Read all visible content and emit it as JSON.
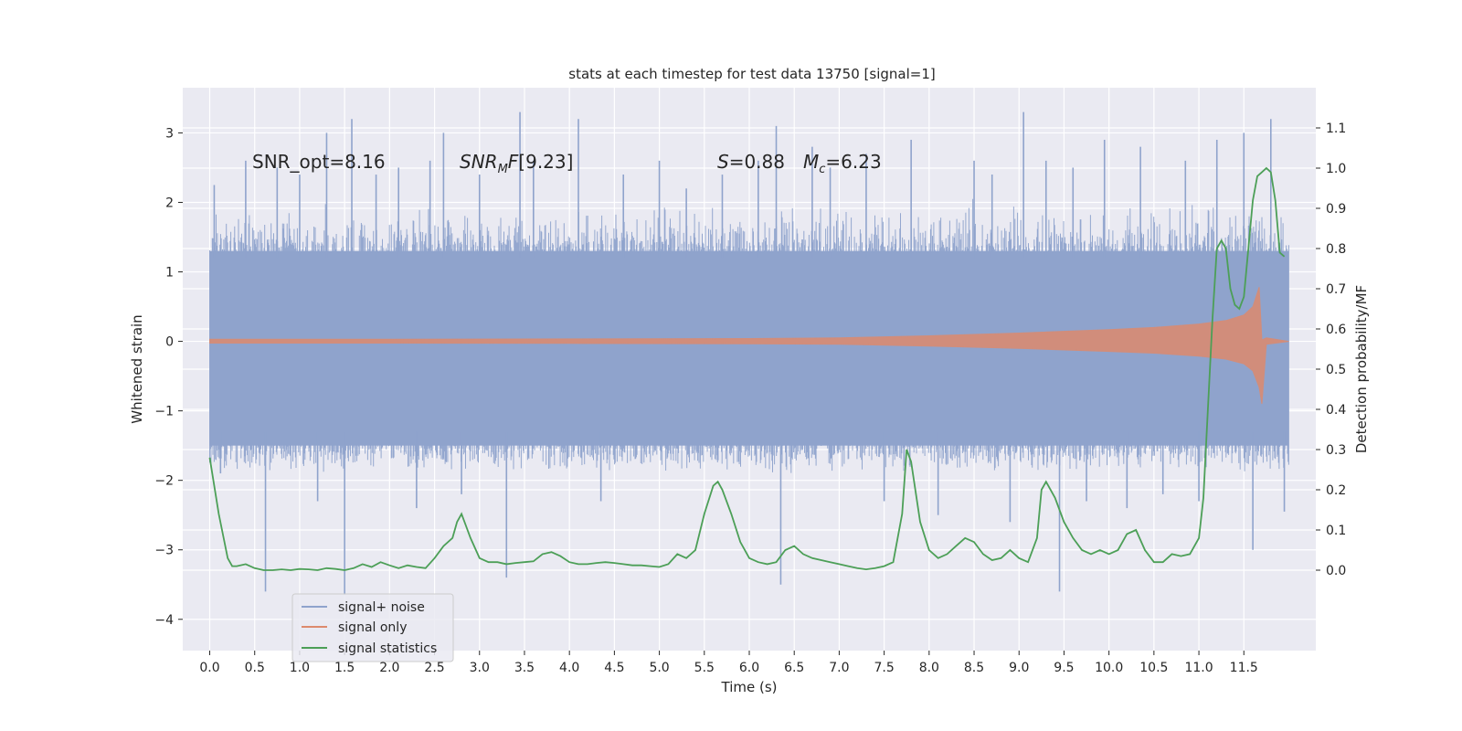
{
  "chart_data": {
    "type": "line",
    "title": "stats at each timestep for test data 13750 [signal=1]",
    "xlabel": "Time (s)",
    "ylabel": "Whitened strain",
    "ylabel_right": "Detection probability/MF",
    "xlim": [
      -0.3,
      12.3
    ],
    "ylim": [
      -4.45,
      3.65
    ],
    "ylim_right": [
      -0.2,
      1.2
    ],
    "x_ticks": [
      "0.0",
      "0.5",
      "1.0",
      "1.5",
      "2.0",
      "2.5",
      "3.0",
      "3.5",
      "4.0",
      "4.5",
      "5.0",
      "5.5",
      "6.0",
      "6.5",
      "7.0",
      "7.5",
      "8.0",
      "8.5",
      "9.0",
      "9.5",
      "10.0",
      "10.5",
      "11.0",
      "11.5"
    ],
    "y_ticks": [
      "3",
      "2",
      "1",
      "0",
      "−1",
      "−2",
      "−3",
      "−4"
    ],
    "y_ticks_right": [
      "1.1",
      "1.0",
      "0.9",
      "0.8",
      "0.7",
      "0.6",
      "0.5",
      "0.4",
      "0.3",
      "0.2",
      "0.1",
      "0.0"
    ],
    "grid": true,
    "legend_position": "lower-left",
    "annotations": {
      "snr_opt": "SNR_opt=8.16",
      "snr_mf": "[9.23]",
      "s_value": "=0.88",
      "mc_value": "=6.23"
    },
    "series": [
      {
        "name": "signal+ noise",
        "color": "#8fa3cc",
        "x_range": [
          0.0,
          12.0
        ],
        "envelope_typical": [
          -1.6,
          1.4
        ],
        "spikes": [
          [
            0.05,
            2.25
          ],
          [
            0.12,
            -1.9
          ],
          [
            0.4,
            2.6
          ],
          [
            0.62,
            -3.6
          ],
          [
            0.75,
            2.5
          ],
          [
            1.0,
            2.4
          ],
          [
            1.2,
            -2.3
          ],
          [
            1.3,
            3.0
          ],
          [
            1.5,
            -3.65
          ],
          [
            1.58,
            3.2
          ],
          [
            1.85,
            2.4
          ],
          [
            2.1,
            2.5
          ],
          [
            2.3,
            -2.4
          ],
          [
            2.45,
            2.6
          ],
          [
            2.6,
            3.0
          ],
          [
            2.8,
            -2.2
          ],
          [
            3.0,
            2.4
          ],
          [
            3.3,
            -3.4
          ],
          [
            3.45,
            3.3
          ],
          [
            3.6,
            2.6
          ],
          [
            4.1,
            3.2
          ],
          [
            4.35,
            -2.3
          ],
          [
            4.6,
            2.4
          ],
          [
            5.0,
            2.6
          ],
          [
            5.3,
            2.2
          ],
          [
            5.7,
            2.4
          ],
          [
            6.1,
            2.6
          ],
          [
            6.3,
            3.1
          ],
          [
            6.35,
            -3.5
          ],
          [
            6.7,
            2.8
          ],
          [
            6.9,
            2.5
          ],
          [
            7.3,
            2.7
          ],
          [
            7.5,
            -2.3
          ],
          [
            7.8,
            2.9
          ],
          [
            8.1,
            -2.5
          ],
          [
            8.5,
            2.6
          ],
          [
            8.7,
            2.4
          ],
          [
            8.9,
            -2.6
          ],
          [
            9.05,
            3.3
          ],
          [
            9.3,
            2.6
          ],
          [
            9.45,
            -3.6
          ],
          [
            9.6,
            2.5
          ],
          [
            9.75,
            -2.3
          ],
          [
            9.95,
            2.9
          ],
          [
            10.2,
            -2.4
          ],
          [
            10.35,
            2.8
          ],
          [
            10.6,
            -2.2
          ],
          [
            10.85,
            2.6
          ],
          [
            11.0,
            -2.3
          ],
          [
            11.2,
            2.9
          ],
          [
            11.5,
            3.0
          ],
          [
            11.6,
            -3.0
          ],
          [
            11.8,
            3.2
          ],
          [
            11.95,
            -2.45
          ]
        ]
      },
      {
        "name": "signal only",
        "color": "#dd8a6d",
        "envelope": [
          [
            0.0,
            0.03
          ],
          [
            2.0,
            0.03
          ],
          [
            4.0,
            0.035
          ],
          [
            6.0,
            0.04
          ],
          [
            7.0,
            0.05
          ],
          [
            8.0,
            0.08
          ],
          [
            9.0,
            0.12
          ],
          [
            10.0,
            0.17
          ],
          [
            10.5,
            0.2
          ],
          [
            11.0,
            0.25
          ],
          [
            11.3,
            0.3
          ],
          [
            11.5,
            0.38
          ],
          [
            11.6,
            0.5
          ],
          [
            11.67,
            0.78
          ],
          [
            11.7,
            -0.9
          ],
          [
            11.75,
            0.05
          ],
          [
            12.0,
            0.0
          ]
        ]
      },
      {
        "name": "signal statistics",
        "color": "#4c9f57",
        "axis": "right",
        "x": [
          0.0,
          0.1,
          0.2,
          0.25,
          0.3,
          0.4,
          0.5,
          0.6,
          0.7,
          0.8,
          0.9,
          1.0,
          1.1,
          1.2,
          1.3,
          1.4,
          1.5,
          1.6,
          1.7,
          1.8,
          1.9,
          2.0,
          2.1,
          2.2,
          2.3,
          2.4,
          2.5,
          2.6,
          2.7,
          2.75,
          2.8,
          2.9,
          3.0,
          3.1,
          3.2,
          3.3,
          3.4,
          3.5,
          3.6,
          3.7,
          3.8,
          3.9,
          4.0,
          4.1,
          4.2,
          4.3,
          4.4,
          4.5,
          4.6,
          4.7,
          4.8,
          4.9,
          5.0,
          5.1,
          5.2,
          5.3,
          5.4,
          5.5,
          5.6,
          5.65,
          5.7,
          5.8,
          5.9,
          6.0,
          6.1,
          6.2,
          6.3,
          6.4,
          6.5,
          6.6,
          6.7,
          6.8,
          6.9,
          7.0,
          7.1,
          7.2,
          7.3,
          7.4,
          7.5,
          7.6,
          7.7,
          7.75,
          7.8,
          7.9,
          8.0,
          8.1,
          8.2,
          8.3,
          8.4,
          8.5,
          8.6,
          8.7,
          8.8,
          8.9,
          9.0,
          9.1,
          9.2,
          9.25,
          9.3,
          9.4,
          9.5,
          9.6,
          9.7,
          9.8,
          9.9,
          10.0,
          10.1,
          10.2,
          10.3,
          10.4,
          10.5,
          10.6,
          10.7,
          10.8,
          10.9,
          11.0,
          11.05,
          11.1,
          11.15,
          11.2,
          11.25,
          11.3,
          11.35,
          11.4,
          11.45,
          11.5,
          11.55,
          11.6,
          11.65,
          11.7,
          11.75,
          11.8,
          11.85,
          11.9,
          11.95
        ],
        "values": [
          0.28,
          0.14,
          0.03,
          0.01,
          0.01,
          0.015,
          0.005,
          0.0,
          0.0,
          0.002,
          0.0,
          0.003,
          0.002,
          0.0,
          0.005,
          0.003,
          0.0,
          0.005,
          0.015,
          0.008,
          0.02,
          0.012,
          0.005,
          0.012,
          0.008,
          0.005,
          0.03,
          0.06,
          0.08,
          0.12,
          0.14,
          0.08,
          0.03,
          0.02,
          0.02,
          0.015,
          0.018,
          0.02,
          0.022,
          0.04,
          0.045,
          0.035,
          0.02,
          0.015,
          0.015,
          0.018,
          0.02,
          0.018,
          0.015,
          0.012,
          0.012,
          0.01,
          0.008,
          0.015,
          0.04,
          0.03,
          0.05,
          0.14,
          0.21,
          0.22,
          0.2,
          0.14,
          0.07,
          0.03,
          0.02,
          0.015,
          0.02,
          0.05,
          0.06,
          0.04,
          0.03,
          0.025,
          0.02,
          0.015,
          0.01,
          0.005,
          0.002,
          0.005,
          0.01,
          0.02,
          0.14,
          0.3,
          0.27,
          0.12,
          0.05,
          0.03,
          0.04,
          0.06,
          0.08,
          0.07,
          0.04,
          0.025,
          0.03,
          0.05,
          0.03,
          0.02,
          0.08,
          0.2,
          0.22,
          0.18,
          0.12,
          0.08,
          0.05,
          0.04,
          0.05,
          0.04,
          0.05,
          0.09,
          0.1,
          0.05,
          0.02,
          0.02,
          0.04,
          0.035,
          0.04,
          0.08,
          0.18,
          0.4,
          0.62,
          0.8,
          0.82,
          0.8,
          0.7,
          0.66,
          0.65,
          0.68,
          0.8,
          0.92,
          0.98,
          0.99,
          1.0,
          0.99,
          0.92,
          0.79,
          0.78
        ]
      }
    ]
  }
}
